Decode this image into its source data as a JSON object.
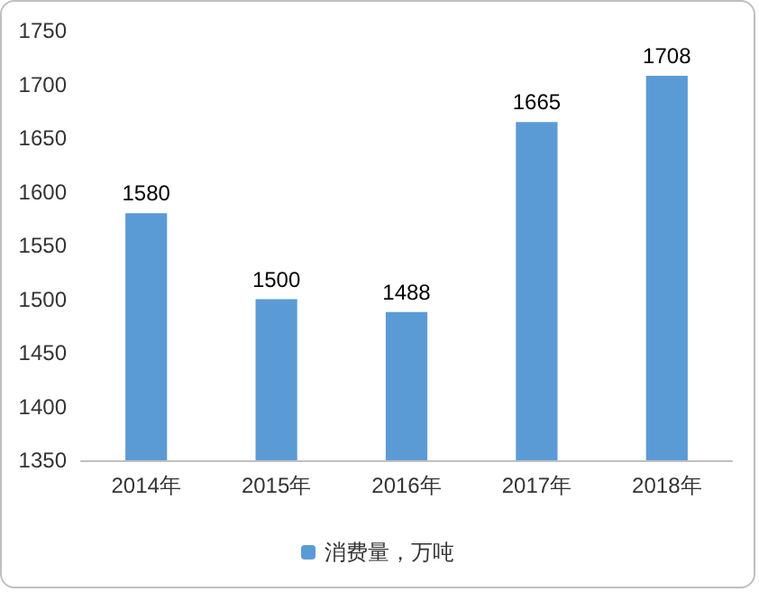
{
  "chart_data": {
    "type": "bar",
    "categories": [
      "2014年",
      "2015年",
      "2016年",
      "2017年",
      "2018年"
    ],
    "series": [
      {
        "name": "消费量，万吨",
        "color": "#5b9bd5",
        "values": [
          1580,
          1500,
          1488,
          1665,
          1708
        ]
      }
    ],
    "ylim": [
      1350,
      1750
    ],
    "yticks": [
      1350,
      1400,
      1450,
      1500,
      1550,
      1600,
      1650,
      1700,
      1750
    ],
    "data_labels": true,
    "legend": "bottom",
    "grid": false
  }
}
